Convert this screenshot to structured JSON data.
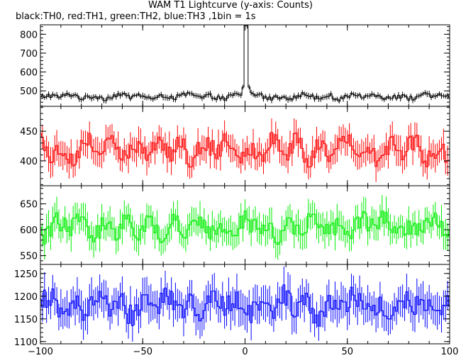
{
  "title": "WAM T1 Lightcurve (y-axis: Counts)",
  "subtitle": "black:TH0, red:TH1, green:TH2, blue:TH3 ,1bin = 1s",
  "chart_data": {
    "type": "line",
    "x_range": [
      -100,
      100
    ],
    "x_ticks": [
      -100,
      -50,
      0,
      50,
      100
    ],
    "x_tick_labels": [
      "−100",
      "−50",
      "0",
      "50",
      "100"
    ],
    "panels": [
      {
        "series_name": "TH0",
        "color": "#000000",
        "ylim": [
          418,
          850
        ],
        "y_ticks": [
          500,
          600,
          700,
          800
        ],
        "y_tick_labels": [
          "500",
          "600",
          "700",
          "800"
        ],
        "baseline_mean": 470,
        "noise_amplitude": 16,
        "error_half": 14,
        "spike": {
          "x": [
            -1,
            0,
            1,
            2,
            3
          ],
          "y": [
            520,
            845,
            845,
            520,
            490
          ]
        }
      },
      {
        "series_name": "TH1",
        "color": "#ff0000",
        "ylim": [
          358,
          492
        ],
        "y_ticks": [
          400,
          450
        ],
        "y_tick_labels": [
          "400",
          "450"
        ],
        "baseline_mean": 420,
        "noise_amplitude": 22,
        "error_half": 22
      },
      {
        "series_name": "TH2",
        "color": "#00ee00",
        "ylim": [
          533,
          685
        ],
        "y_ticks": [
          550,
          600,
          650
        ],
        "y_tick_labels": [
          "550",
          "600",
          "650"
        ],
        "baseline_mean": 605,
        "noise_amplitude": 24,
        "error_half": 26
      },
      {
        "series_name": "TH3",
        "color": "#0000ff",
        "ylim": [
          1095,
          1270
        ],
        "y_ticks": [
          1100,
          1150,
          1200,
          1250
        ],
        "y_tick_labels": [
          "1100",
          "1150",
          "1200",
          "1250"
        ],
        "baseline_mean": 1180,
        "noise_amplitude": 30,
        "error_half": 36
      }
    ]
  }
}
